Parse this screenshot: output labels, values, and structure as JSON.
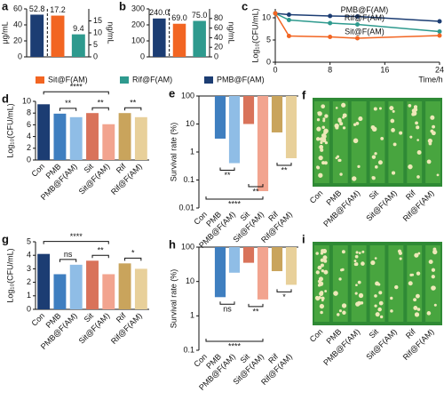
{
  "chart_data": [
    {
      "type": "bar",
      "label": "a",
      "ylabel": "μg/mL",
      "y2label": "ng/mL",
      "series": [
        {
          "name": "PMB@F(AM)",
          "color": "#1c3d73",
          "values": [
            52.8
          ]
        },
        {
          "name": "Sit@F(AM)",
          "color": "#f26522",
          "values": [
            17.2
          ],
          "axis": "y2"
        },
        {
          "name": "Rif@F(AM)",
          "color": "#2e9a8e",
          "values": [
            9.4
          ],
          "axis": "y2"
        }
      ],
      "ylim": [
        0,
        60
      ],
      "yticks": [
        0,
        20,
        40,
        60
      ],
      "y2lim": [
        0,
        20
      ],
      "y2ticks": [
        0,
        5,
        10,
        15
      ]
    },
    {
      "type": "bar",
      "label": "b",
      "y2label": "ng/mL",
      "series": [
        {
          "color": "#1c3d73",
          "values": [
            240
          ],
          "value_labels": [
            "240.0"
          ]
        },
        {
          "color": "#f26522",
          "values": [
            69
          ],
          "value_labels": [
            "69.0"
          ],
          "axis": "y2"
        },
        {
          "color": "#2e9a8e",
          "values": [
            75
          ],
          "value_labels": [
            "75.0"
          ],
          "axis": "y2"
        }
      ],
      "ylim": [
        0,
        300
      ],
      "yticks": [
        0,
        100,
        200,
        300
      ],
      "y2lim": [
        0,
        100
      ],
      "y2ticks": [
        0,
        20,
        40,
        60,
        80
      ]
    },
    {
      "type": "line",
      "label": "c",
      "ylabel": "Log₁₀(CFU/mL)",
      "xlabel": "Time/h",
      "x": [
        0,
        2,
        8,
        12,
        24
      ],
      "series": [
        {
          "name": "PMB@F(AM)",
          "color": "#1c3d73",
          "values": [
            11,
            10.7,
            10.4,
            10.3,
            9.2
          ]
        },
        {
          "name": "Rif@F(AM)",
          "color": "#2e9a8e",
          "values": [
            11,
            9.5,
            8.8,
            8.5,
            6.9
          ]
        },
        {
          "name": "Sit@F(AM)",
          "color": "#f26522",
          "values": [
            11,
            5.9,
            5.7,
            5.4,
            6.0
          ]
        }
      ],
      "xlim": [
        0,
        24
      ],
      "xticks": [
        0,
        8,
        16,
        24
      ],
      "ylim": [
        0,
        12
      ],
      "yticks": [
        0,
        5,
        10
      ]
    },
    {
      "type": "bar",
      "label": "d",
      "ylabel": "Log₁₀(CFU/mL)",
      "categories": [
        "Con",
        "PMB",
        "PMB@F(AM)",
        "Sit",
        "Sit@F(AM)",
        "Rif",
        "Rif@F(AM)"
      ],
      "values": [
        9.5,
        7.9,
        7.3,
        8.0,
        6.1,
        8.0,
        7.3
      ],
      "colors": [
        "#1c3d73",
        "#3f7fc0",
        "#8fbde6",
        "#d9735a",
        "#f2a48f",
        "#c9a45c",
        "#e8d09a"
      ],
      "ylim": [
        0,
        10
      ],
      "yticks": [
        0,
        2,
        4,
        6,
        8,
        10
      ],
      "annotations": [
        {
          "text": "****",
          "between": [
            0,
            4
          ]
        },
        {
          "text": "**",
          "between": [
            1,
            2
          ]
        },
        {
          "text": "**",
          "between": [
            3,
            4
          ]
        },
        {
          "text": "**",
          "between": [
            5,
            6
          ]
        }
      ]
    },
    {
      "type": "bar",
      "label": "e",
      "ylabel": "Survival rate (%)",
      "log_scale": true,
      "categories": [
        "Con",
        "PMB",
        "PMB@F(AM)",
        "Sit",
        "Sit@F(AM)",
        "Rif",
        "Rif@F(AM)"
      ],
      "values": [
        100,
        3,
        0.4,
        10,
        0.04,
        5,
        0.6
      ],
      "colors": [
        "#1c3d73",
        "#3f7fc0",
        "#8fbde6",
        "#d9735a",
        "#f2a48f",
        "#c9a45c",
        "#e8d09a"
      ],
      "ylim": [
        0.01,
        100
      ],
      "yticks": [
        0.01,
        0.1,
        1,
        10,
        100
      ],
      "annotations": [
        {
          "text": "****",
          "between": [
            0,
            4
          ]
        },
        {
          "text": "**",
          "between": [
            1,
            2
          ]
        },
        {
          "text": "**",
          "between": [
            3,
            4
          ]
        },
        {
          "text": "**",
          "between": [
            5,
            6
          ]
        }
      ]
    },
    {
      "type": "photo",
      "label": "f",
      "categories": [
        "Con",
        "PMB",
        "PMB@F(AM)",
        "Sit",
        "Sit@F(AM)",
        "Rif",
        "Rif@F(AM)"
      ]
    },
    {
      "type": "bar",
      "label": "g",
      "ylabel": "Log₁₀(CFU/mL)",
      "categories": [
        "Con",
        "PMB",
        "PMB@F(AM)",
        "Sit",
        "Sit@F(AM)",
        "Rif",
        "Rif@F(AM)"
      ],
      "values": [
        4.1,
        2.6,
        3.3,
        3.6,
        2.6,
        3.4,
        3.0
      ],
      "colors": [
        "#1c3d73",
        "#3f7fc0",
        "#8fbde6",
        "#d9735a",
        "#f2a48f",
        "#c9a45c",
        "#e8d09a"
      ],
      "ylim": [
        0,
        5
      ],
      "yticks": [
        0,
        1,
        2,
        3,
        4,
        5
      ],
      "annotations": [
        {
          "text": "****",
          "between": [
            0,
            4
          ]
        },
        {
          "text": "ns",
          "between": [
            1,
            2
          ]
        },
        {
          "text": "**",
          "between": [
            3,
            4
          ]
        },
        {
          "text": "*",
          "between": [
            5,
            6
          ]
        }
      ]
    },
    {
      "type": "bar",
      "label": "h",
      "ylabel": "Survival rate (%)",
      "log_scale": true,
      "categories": [
        "Con",
        "PMB",
        "PMB@F(AM)",
        "Sit",
        "Sit@F(AM)",
        "Rif",
        "Rif@F(AM)"
      ],
      "values": [
        100,
        3.5,
        18,
        35,
        3,
        20,
        8
      ],
      "colors": [
        "#1c3d73",
        "#3f7fc0",
        "#8fbde6",
        "#d9735a",
        "#f2a48f",
        "#c9a45c",
        "#e8d09a"
      ],
      "ylim": [
        0.1,
        100
      ],
      "yticks": [
        0.1,
        1,
        10,
        100
      ],
      "annotations": [
        {
          "text": "****",
          "between": [
            0,
            4
          ]
        },
        {
          "text": "ns",
          "between": [
            1,
            2
          ]
        },
        {
          "text": "**",
          "between": [
            3,
            4
          ]
        },
        {
          "text": "*",
          "between": [
            5,
            6
          ]
        }
      ]
    },
    {
      "type": "photo",
      "label": "i",
      "categories": [
        "Con",
        "PMB",
        "PMB@F(AM)",
        "Sit",
        "Sit@F(AM)",
        "Rif",
        "Rif@F(AM)"
      ]
    }
  ]
}
